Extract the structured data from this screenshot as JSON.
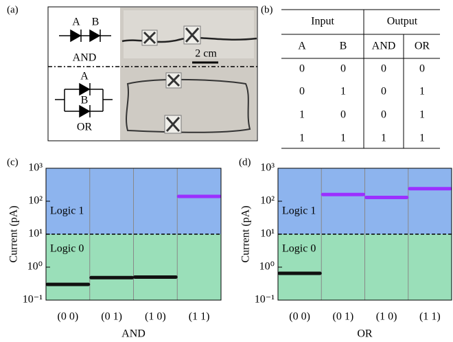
{
  "figure_a": {
    "panel_label": "(a)",
    "and_gate": {
      "input_a": "A",
      "input_b": "B",
      "label": "AND"
    },
    "or_gate": {
      "input_a": "A",
      "input_b": "B",
      "label": "OR"
    },
    "scale_bar": "2 cm"
  },
  "table_b": {
    "panel_label": "(b)",
    "group_headers": [
      "Input",
      "Output"
    ],
    "columns": [
      "A",
      "B",
      "AND",
      "OR"
    ],
    "rows": [
      [
        0,
        0,
        0,
        0
      ],
      [
        0,
        1,
        0,
        1
      ],
      [
        1,
        0,
        0,
        1
      ],
      [
        1,
        1,
        1,
        1
      ]
    ]
  },
  "chart_data": [
    {
      "type": "line",
      "panel_label": "(c)",
      "x_label": "AND",
      "y_label": "Current (pA)",
      "log_y": true,
      "categories": [
        "(0 0)",
        "(0 1)",
        "(1 0)",
        "(1 1)"
      ],
      "series": [
        {
          "values": [
            0.3,
            0.48,
            0.5,
            140
          ],
          "colors": [
            "#111111",
            "#111111",
            "#111111",
            "#9b30ff"
          ]
        }
      ],
      "ylim": [
        0.1,
        1000
      ],
      "yticks": [
        {
          "value": 0.1,
          "label": "10⁻¹"
        },
        {
          "value": 1,
          "label": "10⁰"
        },
        {
          "value": 10,
          "label": "10¹"
        },
        {
          "value": 100,
          "label": "10²"
        },
        {
          "value": 1000,
          "label": "10³"
        }
      ],
      "regions": [
        {
          "label": "Logic 1",
          "from": 10,
          "to": 1000,
          "color": "#8db4ee"
        },
        {
          "label": "Logic 0",
          "from": 0.1,
          "to": 10,
          "color": "#9adfb9"
        }
      ],
      "threshold": 10
    },
    {
      "type": "line",
      "panel_label": "(d)",
      "x_label": "OR",
      "y_label": "Current (pA)",
      "log_y": true,
      "categories": [
        "(0 0)",
        "(0 1)",
        "(1 0)",
        "(1 1)"
      ],
      "series": [
        {
          "values": [
            0.65,
            160,
            130,
            240
          ],
          "colors": [
            "#111111",
            "#9b30ff",
            "#9b30ff",
            "#9b30ff"
          ]
        }
      ],
      "ylim": [
        0.1,
        1000
      ],
      "yticks": [
        {
          "value": 0.1,
          "label": "10⁻¹"
        },
        {
          "value": 1,
          "label": "10⁰"
        },
        {
          "value": 10,
          "label": "10¹"
        },
        {
          "value": 100,
          "label": "10²"
        },
        {
          "value": 1000,
          "label": "10³"
        }
      ],
      "regions": [
        {
          "label": "Logic 1",
          "from": 10,
          "to": 1000,
          "color": "#8db4ee"
        },
        {
          "label": "Logic 0",
          "from": 0.1,
          "to": 10,
          "color": "#9adfb9"
        }
      ],
      "threshold": 10
    }
  ]
}
